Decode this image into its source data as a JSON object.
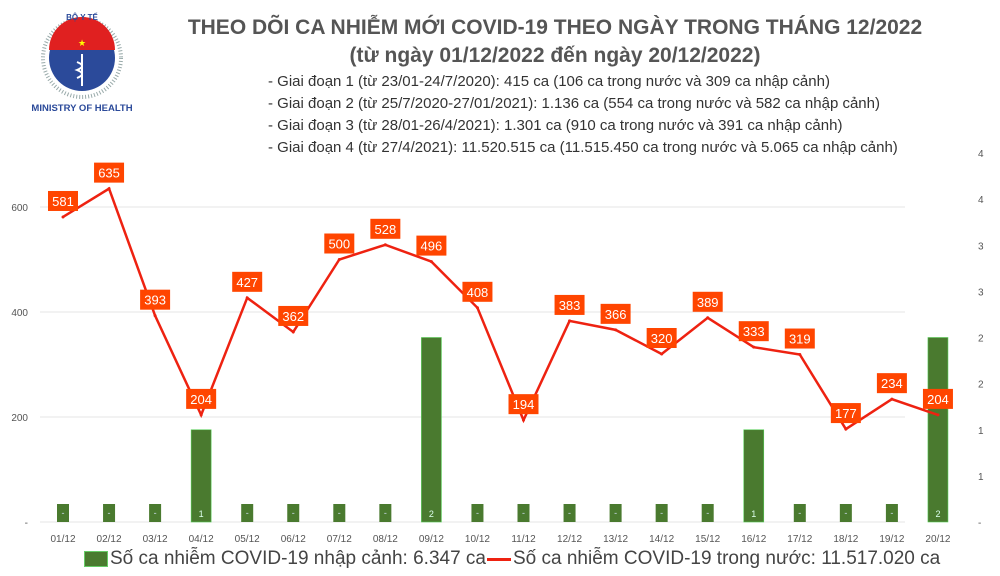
{
  "logo": {
    "top_text": "BỘ Y TẾ",
    "bottom_text": "MINISTRY OF HEALTH"
  },
  "header": {
    "title": "THEO DÕI CA NHIỄM MỚI COVID-19 THEO NGÀY TRONG THÁNG 12/2022",
    "subtitle": "(từ ngày 01/12/2022 đến ngày 20/12/2022)",
    "stages": [
      "- Giai đoạn 1 (từ 23/01-24/7/2020): 415 ca (106 ca trong nước và 309 ca nhập cảnh)",
      "- Giai đoạn 2 (từ 25/7/2020-27/01/2021): 1.136 ca (554 ca trong nước và 582 ca nhập cảnh)",
      "- Giai đoạn 3 (từ 28/01-26/4/2021): 1.301 ca (910 ca trong nước và 391 ca nhập cảnh)",
      "- Giai đoạn 4 (từ 27/4/2021): 11.520.515 ca (11.515.450 ca trong nước và 5.065 ca nhập cảnh)"
    ]
  },
  "chart_data": {
    "type": "bar+line",
    "categories": [
      "01/12",
      "02/12",
      "03/12",
      "04/12",
      "05/12",
      "06/12",
      "07/12",
      "08/12",
      "09/12",
      "10/12",
      "11/12",
      "12/12",
      "13/12",
      "14/12",
      "15/12",
      "16/12",
      "17/12",
      "18/12",
      "19/12",
      "20/12"
    ],
    "series": [
      {
        "name": "Số ca nhiễm COVID-19 nhập cảnh: 6.347 ca",
        "type": "bar",
        "axis": "right",
        "color": "#4a7a2f",
        "values": [
          0,
          0,
          0,
          1,
          0,
          0,
          0,
          0,
          2,
          0,
          0,
          0,
          0,
          0,
          0,
          1,
          0,
          0,
          0,
          2
        ]
      },
      {
        "name": "Số ca nhiễm COVID-19 trong nước: 11.517.020 ca",
        "type": "line",
        "axis": "left",
        "color": "#ee2211",
        "values": [
          581,
          635,
          393,
          204,
          427,
          362,
          500,
          528,
          496,
          408,
          194,
          383,
          366,
          320,
          389,
          333,
          319,
          177,
          234,
          204
        ]
      }
    ],
    "left_axis": {
      "range": [
        0,
        600
      ],
      "ticks": [
        "-",
        "200",
        "400",
        "600"
      ]
    },
    "right_axis": {
      "range": [
        0,
        4
      ],
      "ticks": [
        "-",
        "1",
        "1",
        "2",
        "2",
        "3",
        "3",
        "4",
        "4"
      ]
    },
    "zero_label": "-",
    "label_color": "#ff4500",
    "grid": true,
    "legend": "bottom"
  }
}
